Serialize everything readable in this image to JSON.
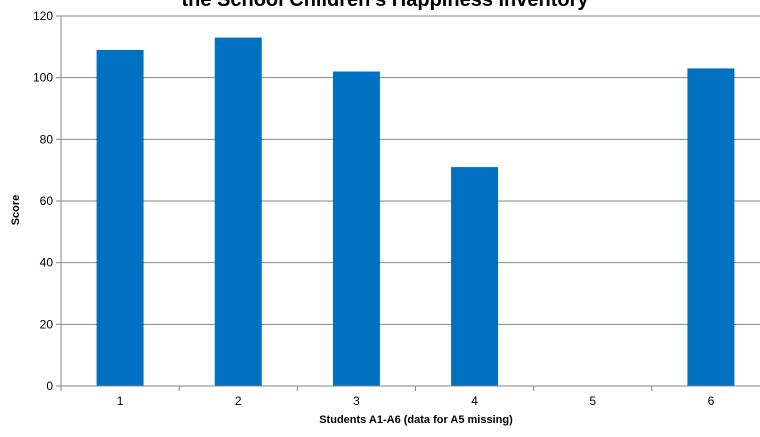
{
  "chart_data": {
    "type": "bar",
    "title": "the School Children's Happiness Inventory",
    "xlabel": "Students  A1-A6 (data for A5 missing)",
    "ylabel": "Score",
    "categories": [
      "1",
      "2",
      "3",
      "4",
      "5",
      "6"
    ],
    "values": [
      109,
      113,
      102,
      71,
      null,
      103
    ],
    "ylim": [
      0,
      120
    ],
    "yticks": [
      0,
      20,
      40,
      60,
      80,
      100,
      120
    ],
    "grid": true,
    "bar_color": "#0070C0",
    "grid_color": "#878787",
    "axis_color": "#878787"
  }
}
